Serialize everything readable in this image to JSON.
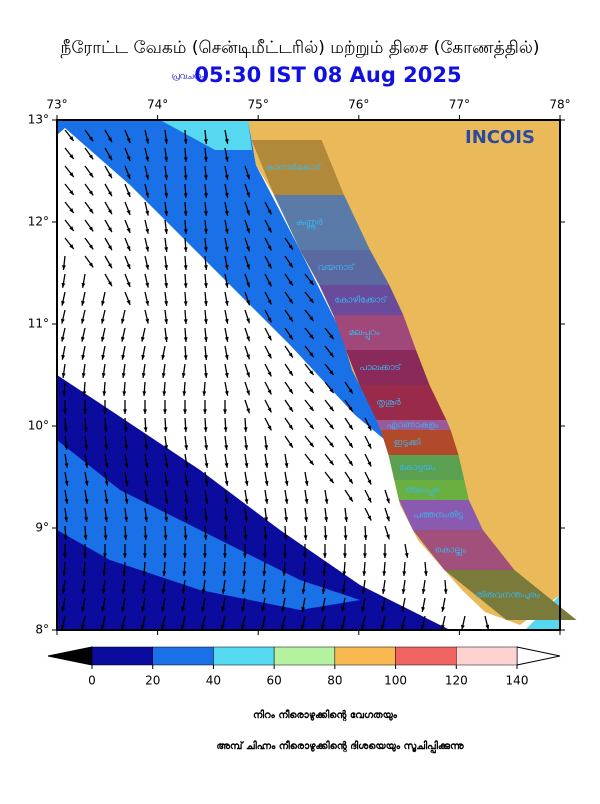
{
  "header": {
    "title": "நீரோட்ட வேகம் (சென்டிமீட்டரில்) மற்றும் திசை (கோணத்தில்)",
    "prefix": "പ്രവചനം",
    "time": "05:30 IST 08 Aug 2025"
  },
  "map": {
    "xlim": [
      73,
      78
    ],
    "ylim": [
      8,
      13
    ],
    "xticks": [
      {
        "value": 73,
        "label": "73°"
      },
      {
        "value": 74,
        "label": "74°"
      },
      {
        "value": 75,
        "label": "75°"
      },
      {
        "value": 76,
        "label": "76°"
      },
      {
        "value": 77,
        "label": "77°"
      },
      {
        "value": 78,
        "label": "78°"
      }
    ],
    "yticks": [
      {
        "value": 13,
        "label": "13°"
      },
      {
        "value": 12,
        "label": "12°"
      },
      {
        "value": 11,
        "label": "11°"
      },
      {
        "value": 10,
        "label": "10°"
      },
      {
        "value": 9,
        "label": "9°"
      },
      {
        "value": 8,
        "label": "8°"
      }
    ],
    "logo": "INCOIS",
    "districts": [
      "കാസർകോട്",
      "കണ്ണൂർ",
      "വയനാട്",
      "കോഴിക്കോട്",
      "മലപ്പുറം",
      "പാലക്കാട്",
      "തൃശൂർ",
      "എറണാകുളം",
      "ഇടുക്കി",
      "കോട്ടയം",
      "ആലപ്പുഴ",
      "പത്തനംതിട്ട",
      "കൊല്ലം",
      "തിരുവനന്തപുരം"
    ]
  },
  "colorbar": {
    "ticks": [
      0,
      20,
      40,
      60,
      80,
      100,
      120,
      140
    ],
    "colors": [
      "#0b0b9e",
      "#1a70e6",
      "#55d8f0",
      "#b4f2a0",
      "#f9b850",
      "#f06464",
      "#ffd2d2"
    ]
  },
  "footer": {
    "line1": "നിറം നീരൊഴുക്കിന്റെ വേഗതയും",
    "line2": "അമ്പ് ചിഹ്നം നീരൊഴുക്കിന്റെ ദിശയെയും സൂചിപ്പിക്കുന്നു"
  }
}
